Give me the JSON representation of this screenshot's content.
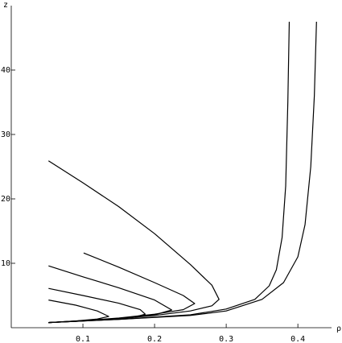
{
  "chart_data": {
    "type": "line",
    "x_label": "ρ",
    "y_label": "z",
    "xlim": [
      0,
      0.447
    ],
    "ylim": [
      0,
      47.5
    ],
    "xticks": [
      0.1,
      0.2,
      0.3,
      0.4
    ],
    "yticks": [
      10,
      20,
      30,
      40
    ],
    "grid": false,
    "series": [
      {
        "color": "#000000",
        "x": [
          0.052,
          0.1,
          0.15,
          0.2,
          0.25,
          0.28,
          0.29,
          0.28,
          0.25,
          0.2,
          0.15,
          0.1,
          0.052
        ],
        "values": [
          25.9,
          22.5,
          18.8,
          14.6,
          9.8,
          6.6,
          4.4,
          3.4,
          2.6,
          1.9,
          1.4,
          1.1,
          0.8
        ]
      },
      {
        "color": "#000000",
        "x": [
          0.101,
          0.15,
          0.2,
          0.24,
          0.256,
          0.24,
          0.2,
          0.15,
          0.1,
          0.052
        ],
        "values": [
          11.6,
          9.4,
          7.0,
          5.0,
          3.75,
          2.8,
          2.1,
          1.5,
          1.1,
          0.8
        ]
      },
      {
        "color": "#000000",
        "x": [
          0.052,
          0.1,
          0.15,
          0.2,
          0.224,
          0.2,
          0.15,
          0.1,
          0.052
        ],
        "values": [
          9.6,
          7.9,
          6.2,
          4.3,
          2.75,
          2.0,
          1.45,
          1.05,
          0.8
        ]
      },
      {
        "color": "#000000",
        "x": [
          0.052,
          0.1,
          0.15,
          0.18,
          0.187,
          0.17,
          0.13,
          0.09,
          0.052
        ],
        "values": [
          6.1,
          5.0,
          3.8,
          2.8,
          2.1,
          1.6,
          1.25,
          1.0,
          0.8
        ]
      },
      {
        "color": "#000000",
        "x": [
          0.052,
          0.09,
          0.12,
          0.136,
          0.12,
          0.09,
          0.052
        ],
        "values": [
          4.3,
          3.5,
          2.6,
          1.75,
          1.35,
          1.05,
          0.8
        ]
      },
      {
        "color": "#000000",
        "x": [
          0.052,
          0.15,
          0.25,
          0.3,
          0.34,
          0.36,
          0.37,
          0.378,
          0.383,
          0.386,
          0.388
        ],
        "values": [
          0.8,
          1.3,
          2.0,
          2.9,
          4.4,
          6.5,
          9,
          14,
          22,
          35,
          47.5
        ]
      },
      {
        "color": "#000000",
        "x": [
          0.052,
          0.15,
          0.25,
          0.3,
          0.35,
          0.38,
          0.4,
          0.41,
          0.418,
          0.423,
          0.426
        ],
        "values": [
          0.8,
          1.3,
          1.9,
          2.6,
          4.4,
          7,
          11,
          16,
          25,
          36,
          47.5
        ]
      }
    ]
  }
}
